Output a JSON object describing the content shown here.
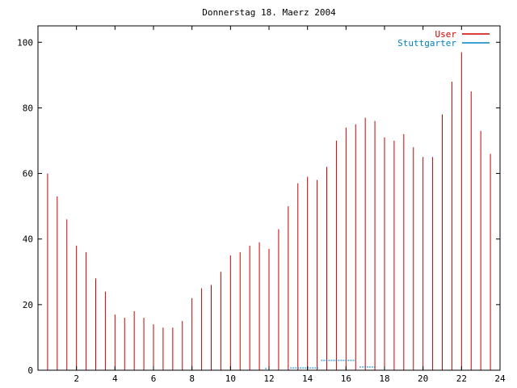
{
  "chart_data": {
    "type": "bar",
    "title": "Donnerstag 18. Maerz 2004",
    "xlabel": "",
    "ylabel": "",
    "xlim": [
      0,
      24
    ],
    "ylim": [
      0,
      105
    ],
    "xticks": [
      2,
      4,
      6,
      8,
      10,
      12,
      14,
      16,
      18,
      20,
      22,
      24
    ],
    "yticks": [
      0,
      20,
      40,
      60,
      80,
      100
    ],
    "grid": false,
    "legend": "top-right",
    "series": [
      {
        "name": "User",
        "color": "#cc0000",
        "x": [
          0,
          0.5,
          1,
          1.5,
          2,
          2.5,
          3,
          3.5,
          4,
          4.5,
          5,
          5.5,
          6,
          6.5,
          7,
          7.5,
          8,
          8.5,
          9,
          9.5,
          10,
          10.5,
          11,
          11.5,
          12,
          12.5,
          13,
          13.5,
          14,
          14.5,
          15,
          15.5,
          16,
          16.5,
          17,
          17.5,
          18,
          18.5,
          19,
          19.5,
          20,
          20.5,
          21,
          21.5,
          22,
          22.5,
          23,
          23.5,
          24
        ],
        "values": [
          78,
          60,
          53,
          46,
          38,
          36,
          28,
          24,
          17,
          16,
          18,
          16,
          14,
          13,
          13,
          15,
          22,
          25,
          26,
          30,
          35,
          36,
          38,
          39,
          37,
          43,
          50,
          57,
          59,
          58,
          62,
          70,
          74,
          75,
          77,
          76,
          71,
          70,
          72,
          68,
          65,
          65,
          78,
          88,
          97,
          85,
          73,
          66,
          63
        ]
      },
      {
        "name": "Stuttgarter",
        "color": "#0080c0",
        "segments": [
          {
            "x": [
              11.8,
              11.9
            ],
            "value": 0.5
          },
          {
            "x": [
              13.1,
              14.6
            ],
            "value": 0.7
          },
          {
            "x": [
              14.7,
              16.5
            ],
            "value": 3
          },
          {
            "x": [
              16.7,
              17.6
            ],
            "value": 1
          }
        ]
      }
    ]
  }
}
